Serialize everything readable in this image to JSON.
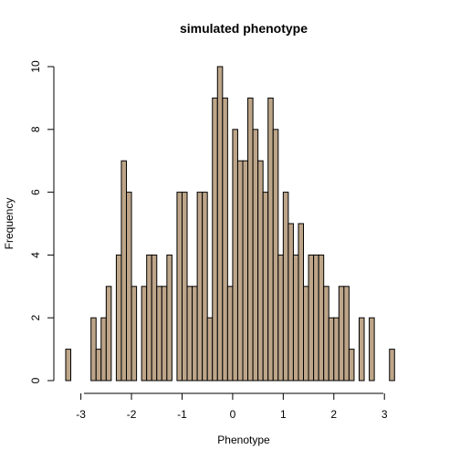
{
  "chart_data": {
    "type": "bar",
    "title": "simulated phenotype",
    "xlabel": "Phenotype",
    "ylabel": "Frequency",
    "bar_color": "#bda589",
    "xlim": [
      -3.3,
      3.7
    ],
    "ylim": [
      0,
      10
    ],
    "bin_start": -3.3,
    "bin_width": 0.1,
    "x_ticks": [
      -3,
      -2,
      -1,
      0,
      1,
      2,
      3
    ],
    "y_ticks": [
      0,
      2,
      4,
      6,
      8,
      10
    ],
    "values": [
      1,
      0,
      0,
      0,
      0,
      2,
      1,
      2,
      3,
      0,
      4,
      7,
      6,
      3,
      0,
      3,
      4,
      4,
      3,
      3,
      4,
      0,
      6,
      6,
      3,
      3,
      6,
      6,
      2,
      9,
      10,
      9,
      3,
      8,
      7,
      7,
      9,
      8,
      7,
      6,
      9,
      8,
      4,
      6,
      5,
      4,
      5,
      3,
      4,
      4,
      4,
      3,
      2,
      2,
      3,
      3,
      1,
      0,
      2,
      0,
      2,
      0,
      0,
      0,
      1
    ]
  }
}
